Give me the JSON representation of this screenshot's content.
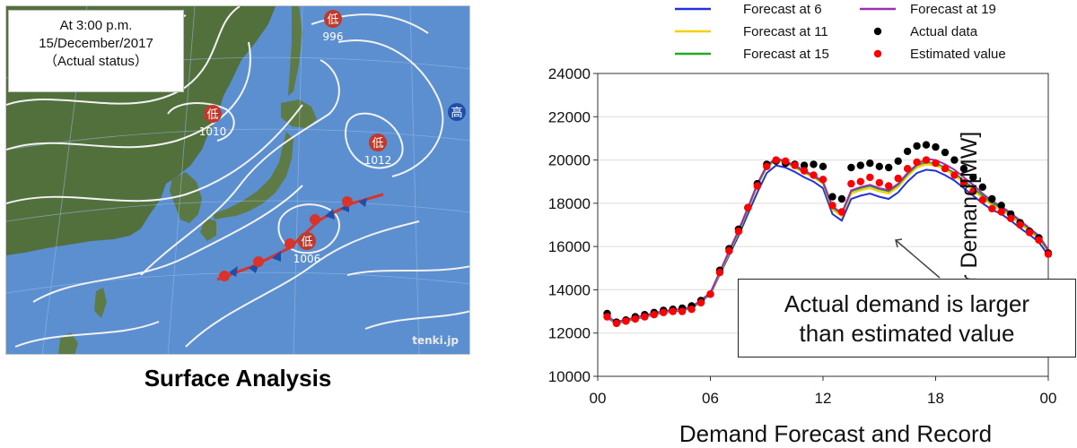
{
  "map": {
    "info_line1": "At 3:00 p.m.",
    "info_line2": "15/December/2017",
    "info_line3": "（Actual status）",
    "caption": "Surface Analysis",
    "watermark": "tenki.jp",
    "pressure_systems": [
      {
        "symbol": "低",
        "value": "996",
        "kind": "low"
      },
      {
        "symbol": "低",
        "value": "1010",
        "kind": "low"
      },
      {
        "symbol": "低",
        "value": "1012",
        "kind": "low"
      },
      {
        "symbol": "低",
        "value": "1006",
        "kind": "low"
      },
      {
        "symbol": "高",
        "value": "",
        "kind": "high"
      }
    ],
    "colors": {
      "sea": "#5b8fd0",
      "land": "#4f6a3a",
      "isobar": "#f2f2f2",
      "low": "#c0392b",
      "high": "#1f4ea8"
    }
  },
  "annotation": {
    "line1": "Actual demand is larger",
    "line2": "than estimated value"
  },
  "chart_data": {
    "type": "line",
    "xlabel": "Demand Forecast and Record",
    "ylabel": "Power Demand[MW]",
    "xlim": [
      0,
      24
    ],
    "ylim": [
      10000,
      24000
    ],
    "xticks": [
      "00",
      "06",
      "12",
      "18",
      "00"
    ],
    "yticks": [
      "10000",
      "12000",
      "14000",
      "16000",
      "18000",
      "20000",
      "22000",
      "24000"
    ],
    "grid": "horizontal",
    "legend_position": "top",
    "x": [
      0.5,
      1,
      1.5,
      2,
      2.5,
      3,
      3.5,
      4,
      4.5,
      5,
      5.5,
      6,
      6.5,
      7,
      7.5,
      8,
      8.5,
      9,
      9.5,
      10,
      10.5,
      11,
      11.5,
      12,
      12.5,
      13,
      13.5,
      14,
      14.5,
      15,
      15.5,
      16,
      16.5,
      17,
      17.5,
      18,
      18.5,
      19,
      19.5,
      20,
      20.5,
      21,
      21.5,
      22,
      22.5,
      23,
      23.5,
      24
    ],
    "series": [
      {
        "name": "Forecast at 6",
        "kind": "line",
        "color": "#2233dd",
        "values": [
          12700,
          12450,
          12550,
          12650,
          12750,
          12850,
          12950,
          13000,
          13050,
          13150,
          13450,
          13800,
          14700,
          15600,
          16500,
          17500,
          18500,
          19400,
          19750,
          19650,
          19450,
          19200,
          19000,
          18700,
          17500,
          17200,
          18200,
          18350,
          18450,
          18300,
          18200,
          18500,
          19000,
          19400,
          19550,
          19500,
          19300,
          19050,
          18700,
          18350,
          18000,
          17700,
          17500,
          17200,
          16850,
          16550,
          16200,
          15600
        ]
      },
      {
        "name": "Forecast at 11",
        "kind": "line",
        "color": "#f5d000",
        "values": [
          12720,
          12480,
          12580,
          12680,
          12780,
          12880,
          12980,
          13030,
          13080,
          13180,
          13480,
          13830,
          14750,
          15700,
          16650,
          17700,
          18800,
          19650,
          20000,
          19850,
          19650,
          19400,
          19200,
          18900,
          17700,
          17400,
          18450,
          18600,
          18700,
          18550,
          18450,
          18750,
          19250,
          19650,
          19800,
          19750,
          19550,
          19300,
          18950,
          18600,
          18250,
          17900,
          17700,
          17400,
          17050,
          16700,
          16350,
          15750
        ]
      },
      {
        "name": "Forecast at 15",
        "kind": "line",
        "color": "#22aa22",
        "values": [
          12740,
          12500,
          12600,
          12700,
          12800,
          12900,
          13000,
          13050,
          13100,
          13200,
          13500,
          13850,
          14800,
          15750,
          16700,
          17750,
          18850,
          19700,
          20050,
          19900,
          19700,
          19450,
          19250,
          18950,
          17800,
          17500,
          18550,
          18700,
          18800,
          18650,
          18550,
          18850,
          19350,
          19750,
          19900,
          19850,
          19650,
          19400,
          19050,
          18700,
          18350,
          18000,
          17800,
          17500,
          17150,
          16800,
          16450,
          15800
        ]
      },
      {
        "name": "Forecast at 19",
        "kind": "line",
        "color": "#9b30b0",
        "values": [
          12760,
          12520,
          12620,
          12720,
          12820,
          12920,
          13020,
          13070,
          13120,
          13220,
          13520,
          13870,
          14830,
          15800,
          16750,
          17800,
          18900,
          19750,
          20080,
          19950,
          19750,
          19500,
          19300,
          19000,
          17850,
          17550,
          18600,
          18750,
          18850,
          18700,
          18600,
          18900,
          19400,
          19800,
          20050,
          20000,
          19800,
          19550,
          19200,
          18850,
          18450,
          18100,
          17850,
          17550,
          17200,
          16850,
          16500,
          15850
        ]
      },
      {
        "name": "Actual data",
        "kind": "points",
        "color": "#000000",
        "values": [
          12900,
          12500,
          12600,
          12750,
          12850,
          12950,
          13050,
          13100,
          13150,
          13250,
          13500,
          13800,
          14900,
          15900,
          16800,
          17800,
          18900,
          19800,
          19950,
          19850,
          19800,
          19750,
          19800,
          19700,
          18300,
          18200,
          19650,
          19750,
          19850,
          19700,
          19650,
          19950,
          20400,
          20650,
          20700,
          20600,
          20350,
          20000,
          19600,
          19200,
          18750,
          18200,
          17900,
          17500,
          17100,
          16700,
          16400,
          15700
        ]
      },
      {
        "name": "Estimated value",
        "kind": "points",
        "color": "#ff0000",
        "values": [
          12750,
          12450,
          12550,
          12650,
          12750,
          12850,
          12950,
          13000,
          13000,
          13100,
          13400,
          13800,
          14800,
          15800,
          16700,
          17800,
          18800,
          19700,
          20000,
          19950,
          19750,
          19500,
          19300,
          19100,
          17900,
          17600,
          18900,
          19000,
          19200,
          18950,
          18800,
          19150,
          19600,
          19900,
          20000,
          19850,
          19600,
          19300,
          18950,
          18550,
          18150,
          17750,
          17600,
          17300,
          17000,
          16650,
          16300,
          15650
        ]
      }
    ]
  }
}
